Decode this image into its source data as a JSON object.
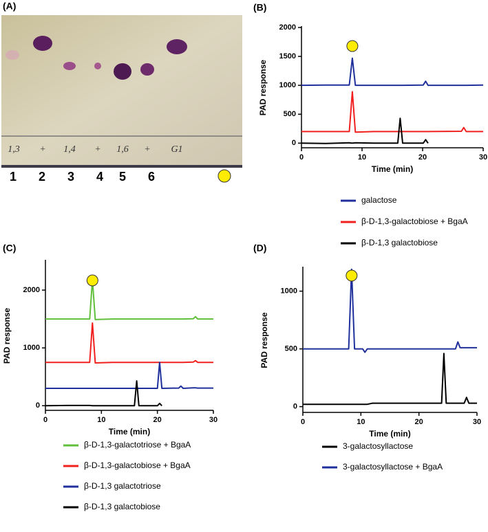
{
  "photo": {
    "label": "(A)",
    "handwriting": [
      "1,3",
      "+",
      "1,4",
      "+",
      "1,6",
      "+",
      "G1"
    ],
    "lanes": [
      "1",
      "2",
      "3",
      "4",
      "5",
      "6"
    ]
  },
  "chart_data": [
    {
      "type": "line",
      "title": "(B)",
      "xlabel": "Time (min)",
      "ylabel": "PAD response",
      "x": [
        0,
        4,
        7.9,
        8.4,
        8.9,
        12,
        15.9,
        16.3,
        16.7,
        20.1,
        20.5,
        20.9,
        26.4,
        26.8,
        27.2,
        30
      ],
      "xlim": [
        0,
        30
      ],
      "xticks": [
        0,
        10,
        20,
        30
      ],
      "ylim": [
        -80,
        2000
      ],
      "yticks": [
        0,
        500,
        1000,
        1500,
        2000
      ],
      "legend": "below",
      "series": [
        {
          "name": "galactose",
          "color": "#1f2f9c",
          "values": [
            1000,
            1005,
            1005,
            1470,
            1000,
            1000,
            1000,
            1000,
            1000,
            1005,
            1070,
            1000,
            1000,
            1000,
            1000,
            1005
          ]
        },
        {
          "name": "β-D-1,3-galactobiose + BgaA",
          "color": "#f0201e",
          "values": [
            200,
            200,
            200,
            890,
            190,
            200,
            200,
            200,
            200,
            200,
            200,
            200,
            205,
            270,
            200,
            200
          ]
        },
        {
          "name": "β-D-1,3 galactobiose",
          "color": "#000000",
          "values": [
            0,
            -5,
            5,
            0,
            5,
            0,
            0,
            430,
            0,
            0,
            60,
            0,
            null,
            null,
            null,
            null
          ]
        }
      ]
    },
    {
      "type": "line",
      "title": "(C)",
      "xlabel": "Time (min)",
      "ylabel": "PAD response",
      "x": [
        0,
        4,
        7.9,
        8.4,
        8.9,
        12,
        15.9,
        16.3,
        16.7,
        20.0,
        20.4,
        20.8,
        23.8,
        24.2,
        24.6,
        26.4,
        26.8,
        27.2,
        30
      ],
      "xlim": [
        0,
        30
      ],
      "xticks": [
        0,
        10,
        20,
        30
      ],
      "ylim": [
        -80,
        2500
      ],
      "yticks": [
        0,
        1000,
        2000
      ],
      "legend": "below",
      "series": [
        {
          "name": "β-D-1,3-galactotriose + BgaA",
          "color": "#5fbf3a",
          "values": [
            1500,
            1500,
            1500,
            2180,
            1490,
            1500,
            1500,
            1500,
            1500,
            1500,
            1500,
            1500,
            1500,
            1500,
            1500,
            1505,
            1540,
            1500,
            1500
          ]
        },
        {
          "name": "β-D-1,3-galactobiose + BgaA",
          "color": "#f0201e",
          "values": [
            750,
            750,
            750,
            1430,
            740,
            750,
            750,
            750,
            750,
            750,
            750,
            750,
            750,
            750,
            750,
            755,
            780,
            750,
            750
          ]
        },
        {
          "name": "β-D-1,3 galactotriose",
          "color": "#1f2f9c",
          "values": [
            300,
            300,
            300,
            300,
            300,
            300,
            300,
            300,
            300,
            300,
            750,
            300,
            305,
            340,
            300,
            310,
            310,
            305,
            305
          ]
        },
        {
          "name": "β-D-1,3 galactobiose",
          "color": "#000000",
          "values": [
            0,
            5,
            5,
            0,
            0,
            0,
            0,
            430,
            0,
            0,
            40,
            0,
            null,
            null,
            null,
            null,
            null,
            null,
            null
          ]
        }
      ]
    },
    {
      "type": "line",
      "title": "(D)",
      "xlabel": "Time (min)",
      "ylabel": "PAD response",
      "x": [
        0,
        4,
        7.9,
        8.4,
        8.9,
        10.3,
        10.7,
        11.1,
        12,
        20,
        23.9,
        24.3,
        24.7,
        26.3,
        26.7,
        27.1,
        27.8,
        28.2,
        28.6,
        30
      ],
      "xlim": [
        0,
        30
      ],
      "xticks": [
        0,
        10,
        20,
        30
      ],
      "ylim": [
        -50,
        1200
      ],
      "yticks": [
        0,
        500,
        1000
      ],
      "legend": "below",
      "series": [
        {
          "name": "3-galactosyllactose",
          "color": "#000000",
          "values": [
            20,
            20,
            20,
            20,
            20,
            20,
            20,
            20,
            30,
            30,
            30,
            460,
            30,
            30,
            30,
            30,
            30,
            80,
            30,
            30
          ]
        },
        {
          "name": "3-galactosyllactose + BgaA",
          "color": "#1f2f9c",
          "values": [
            500,
            500,
            500,
            1190,
            500,
            500,
            470,
            500,
            500,
            500,
            500,
            500,
            500,
            500,
            560,
            510,
            510,
            510,
            510,
            510
          ]
        }
      ]
    }
  ]
}
